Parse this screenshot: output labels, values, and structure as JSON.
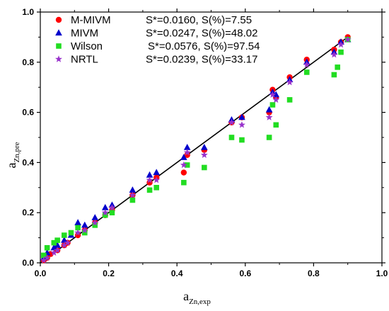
{
  "chart_data": {
    "type": "scatter",
    "xlabel": {
      "main": "a",
      "sub": "Zn,exp"
    },
    "ylabel": {
      "main": "a",
      "sub": "Zn,pre"
    },
    "xlim": [
      0,
      1.0
    ],
    "ylim": [
      0,
      1.0
    ],
    "x_ticks": [
      "0.0",
      "0.2",
      "0.4",
      "0.6",
      "0.8",
      "1.0"
    ],
    "y_ticks": [
      "0.0",
      "0.2",
      "0.4",
      "0.6",
      "0.8",
      "1.0"
    ],
    "grid": false,
    "legend_position": "top-left",
    "reference_line": {
      "from": [
        0,
        0
      ],
      "to": [
        0.9,
        0.9
      ]
    },
    "series": [
      {
        "name": "M-MIVM",
        "stats": "S*=0.0160, S(%)=7.55",
        "marker": "circle",
        "color": "#ff0000",
        "points": [
          [
            0.01,
            0.01
          ],
          [
            0.02,
            0.02
          ],
          [
            0.03,
            0.035
          ],
          [
            0.05,
            0.05
          ],
          [
            0.07,
            0.07
          ],
          [
            0.08,
            0.08
          ],
          [
            0.11,
            0.11
          ],
          [
            0.13,
            0.13
          ],
          [
            0.16,
            0.16
          ],
          [
            0.19,
            0.19
          ],
          [
            0.21,
            0.21
          ],
          [
            0.27,
            0.27
          ],
          [
            0.32,
            0.32
          ],
          [
            0.34,
            0.34
          ],
          [
            0.42,
            0.36
          ],
          [
            0.43,
            0.43
          ],
          [
            0.48,
            0.45
          ],
          [
            0.56,
            0.56
          ],
          [
            0.59,
            0.58
          ],
          [
            0.67,
            0.6
          ],
          [
            0.68,
            0.69
          ],
          [
            0.69,
            0.66
          ],
          [
            0.73,
            0.74
          ],
          [
            0.78,
            0.81
          ],
          [
            0.86,
            0.85
          ],
          [
            0.88,
            0.88
          ],
          [
            0.9,
            0.9
          ]
        ]
      },
      {
        "name": "MIVM",
        "stats": "S*=0.0247, S(%)=48.02",
        "marker": "triangle",
        "color": "#0000cc",
        "points": [
          [
            0.01,
            0.02
          ],
          [
            0.02,
            0.04
          ],
          [
            0.04,
            0.06
          ],
          [
            0.05,
            0.07
          ],
          [
            0.07,
            0.09
          ],
          [
            0.09,
            0.11
          ],
          [
            0.11,
            0.16
          ],
          [
            0.13,
            0.15
          ],
          [
            0.16,
            0.18
          ],
          [
            0.19,
            0.22
          ],
          [
            0.21,
            0.23
          ],
          [
            0.27,
            0.29
          ],
          [
            0.32,
            0.35
          ],
          [
            0.34,
            0.36
          ],
          [
            0.42,
            0.42
          ],
          [
            0.43,
            0.46
          ],
          [
            0.48,
            0.46
          ],
          [
            0.56,
            0.57
          ],
          [
            0.59,
            0.58
          ],
          [
            0.67,
            0.61
          ],
          [
            0.68,
            0.68
          ],
          [
            0.69,
            0.67
          ],
          [
            0.73,
            0.73
          ],
          [
            0.78,
            0.8
          ],
          [
            0.86,
            0.84
          ],
          [
            0.88,
            0.88
          ],
          [
            0.9,
            0.89
          ]
        ]
      },
      {
        "name": "Wilson",
        "stats": "S*=0.0576, S(%)=97.54",
        "marker": "square",
        "color": "#22dd22",
        "points": [
          [
            0.01,
            0.03
          ],
          [
            0.02,
            0.06
          ],
          [
            0.04,
            0.08
          ],
          [
            0.05,
            0.09
          ],
          [
            0.07,
            0.11
          ],
          [
            0.09,
            0.12
          ],
          [
            0.11,
            0.14
          ],
          [
            0.13,
            0.12
          ],
          [
            0.16,
            0.15
          ],
          [
            0.19,
            0.19
          ],
          [
            0.21,
            0.2
          ],
          [
            0.27,
            0.25
          ],
          [
            0.32,
            0.29
          ],
          [
            0.34,
            0.3
          ],
          [
            0.42,
            0.32
          ],
          [
            0.43,
            0.39
          ],
          [
            0.48,
            0.38
          ],
          [
            0.56,
            0.5
          ],
          [
            0.59,
            0.49
          ],
          [
            0.67,
            0.5
          ],
          [
            0.68,
            0.63
          ],
          [
            0.69,
            0.55
          ],
          [
            0.73,
            0.65
          ],
          [
            0.78,
            0.76
          ],
          [
            0.86,
            0.75
          ],
          [
            0.87,
            0.78
          ],
          [
            0.88,
            0.84
          ],
          [
            0.9,
            0.89
          ]
        ]
      },
      {
        "name": "NRTL",
        "stats": "S*=0.0239, S(%)=33.17",
        "marker": "star",
        "color": "#9933cc",
        "points": [
          [
            0.01,
            0.01
          ],
          [
            0.02,
            0.02
          ],
          [
            0.04,
            0.04
          ],
          [
            0.05,
            0.05
          ],
          [
            0.07,
            0.07
          ],
          [
            0.08,
            0.08
          ],
          [
            0.11,
            0.12
          ],
          [
            0.13,
            0.13
          ],
          [
            0.16,
            0.16
          ],
          [
            0.19,
            0.2
          ],
          [
            0.21,
            0.22
          ],
          [
            0.27,
            0.27
          ],
          [
            0.32,
            0.33
          ],
          [
            0.34,
            0.33
          ],
          [
            0.42,
            0.39
          ],
          [
            0.43,
            0.44
          ],
          [
            0.48,
            0.43
          ],
          [
            0.56,
            0.56
          ],
          [
            0.59,
            0.55
          ],
          [
            0.67,
            0.58
          ],
          [
            0.68,
            0.67
          ],
          [
            0.69,
            0.65
          ],
          [
            0.73,
            0.72
          ],
          [
            0.78,
            0.79
          ],
          [
            0.86,
            0.83
          ],
          [
            0.88,
            0.87
          ],
          [
            0.9,
            0.89
          ]
        ]
      }
    ]
  }
}
